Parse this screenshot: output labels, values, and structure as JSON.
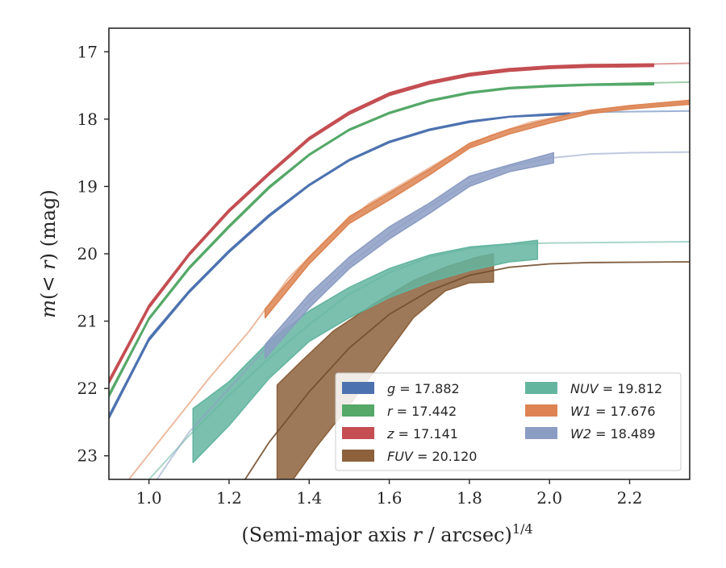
{
  "chart_data": {
    "type": "line",
    "title": "",
    "xlabel": "(Semi-major axis r / arcsec)",
    "xlabel_prefix": "(Semi-major axis ",
    "xlabel_var": "r",
    "xlabel_suffix": " / arcsec)",
    "xlabel_exp": "1/4",
    "ylabel": "m(< r) (mag)",
    "ylabel_prefix": "m",
    "ylabel_mid": "(< ",
    "ylabel_var": "r",
    "ylabel_suffix": ") (mag)",
    "xlim": [
      0.9,
      2.35
    ],
    "ylim": [
      23.35,
      16.65
    ],
    "y_inverted": true,
    "grid": false,
    "legend_position": "lower-right",
    "x_ticks": [
      1.0,
      1.2,
      1.4,
      1.6,
      1.8,
      2.0,
      2.2
    ],
    "x_tick_labels": [
      "1.0",
      "1.2",
      "1.4",
      "1.6",
      "1.8",
      "2.0",
      "2.2"
    ],
    "y_ticks": [
      17,
      18,
      19,
      20,
      21,
      22,
      23
    ],
    "y_tick_labels": [
      "17",
      "18",
      "19",
      "20",
      "21",
      "22",
      "23"
    ],
    "series": [
      {
        "name": "g = 17.882",
        "var": "g",
        "value_text": " = 17.882",
        "color": "#4c72b0",
        "model": [
          [
            0.9,
            22.42
          ],
          [
            1.0,
            21.25
          ],
          [
            1.1,
            20.55
          ],
          [
            1.2,
            19.95
          ],
          [
            1.3,
            19.42
          ],
          [
            1.4,
            18.97
          ],
          [
            1.5,
            18.6
          ],
          [
            1.6,
            18.33
          ],
          [
            1.7,
            18.15
          ],
          [
            1.8,
            18.03
          ],
          [
            1.9,
            17.96
          ],
          [
            2.0,
            17.92
          ],
          [
            2.1,
            17.9
          ],
          [
            2.2,
            17.89
          ],
          [
            2.35,
            17.88
          ]
        ],
        "data_upper": [
          [
            0.9,
            22.4
          ],
          [
            1.0,
            21.25
          ],
          [
            1.1,
            20.55
          ],
          [
            1.2,
            19.95
          ],
          [
            1.3,
            19.42
          ],
          [
            1.4,
            18.97
          ],
          [
            1.5,
            18.6
          ],
          [
            1.6,
            18.33
          ],
          [
            1.7,
            18.15
          ],
          [
            1.8,
            18.03
          ],
          [
            1.9,
            17.96
          ],
          [
            2.05,
            17.91
          ]
        ],
        "data_lower": [
          [
            0.9,
            22.45
          ],
          [
            1.0,
            21.29
          ],
          [
            1.1,
            20.58
          ],
          [
            1.2,
            19.98
          ],
          [
            1.3,
            19.45
          ],
          [
            1.4,
            18.99
          ],
          [
            1.5,
            18.62
          ],
          [
            1.6,
            18.35
          ],
          [
            1.7,
            18.17
          ],
          [
            1.8,
            18.05
          ],
          [
            1.9,
            17.97
          ],
          [
            2.05,
            17.93
          ]
        ]
      },
      {
        "name": "r = 17.442",
        "var": "r",
        "value_text": " = 17.442",
        "color": "#55a868",
        "model": [
          [
            0.9,
            22.1
          ],
          [
            1.0,
            20.95
          ],
          [
            1.1,
            20.2
          ],
          [
            1.2,
            19.58
          ],
          [
            1.3,
            19.0
          ],
          [
            1.4,
            18.52
          ],
          [
            1.5,
            18.15
          ],
          [
            1.6,
            17.9
          ],
          [
            1.7,
            17.72
          ],
          [
            1.8,
            17.6
          ],
          [
            1.9,
            17.53
          ],
          [
            2.0,
            17.5
          ],
          [
            2.1,
            17.48
          ],
          [
            2.2,
            17.47
          ],
          [
            2.35,
            17.45
          ]
        ],
        "data_upper": [
          [
            0.9,
            22.08
          ],
          [
            1.0,
            20.95
          ],
          [
            1.1,
            20.2
          ],
          [
            1.2,
            19.58
          ],
          [
            1.3,
            19.0
          ],
          [
            1.4,
            18.52
          ],
          [
            1.5,
            18.15
          ],
          [
            1.6,
            17.9
          ],
          [
            1.7,
            17.72
          ],
          [
            1.8,
            17.6
          ],
          [
            1.9,
            17.53
          ],
          [
            2.0,
            17.5
          ],
          [
            2.1,
            17.48
          ],
          [
            2.26,
            17.46
          ]
        ],
        "data_lower": [
          [
            0.9,
            22.13
          ],
          [
            1.0,
            20.98
          ],
          [
            1.1,
            20.23
          ],
          [
            1.2,
            19.61
          ],
          [
            1.3,
            19.03
          ],
          [
            1.4,
            18.54
          ],
          [
            1.5,
            18.17
          ],
          [
            1.6,
            17.92
          ],
          [
            1.7,
            17.74
          ],
          [
            1.8,
            17.62
          ],
          [
            1.9,
            17.55
          ],
          [
            2.0,
            17.52
          ],
          [
            2.1,
            17.5
          ],
          [
            2.26,
            17.49
          ]
        ]
      },
      {
        "name": "z = 17.141",
        "var": "z",
        "value_text": " = 17.141",
        "color": "#c44e52",
        "model": [
          [
            0.9,
            21.9
          ],
          [
            1.0,
            20.78
          ],
          [
            1.1,
            20.0
          ],
          [
            1.2,
            19.35
          ],
          [
            1.3,
            18.8
          ],
          [
            1.4,
            18.28
          ],
          [
            1.5,
            17.9
          ],
          [
            1.6,
            17.62
          ],
          [
            1.7,
            17.45
          ],
          [
            1.8,
            17.33
          ],
          [
            1.9,
            17.26
          ],
          [
            2.0,
            17.22
          ],
          [
            2.1,
            17.2
          ],
          [
            2.2,
            17.19
          ],
          [
            2.35,
            17.17
          ]
        ],
        "data_upper": [
          [
            0.9,
            21.87
          ],
          [
            1.0,
            20.76
          ],
          [
            1.1,
            19.99
          ],
          [
            1.2,
            19.34
          ],
          [
            1.3,
            18.79
          ],
          [
            1.4,
            18.27
          ],
          [
            1.5,
            17.89
          ],
          [
            1.6,
            17.61
          ],
          [
            1.7,
            17.44
          ],
          [
            1.8,
            17.32
          ],
          [
            1.9,
            17.25
          ],
          [
            2.0,
            17.21
          ],
          [
            2.1,
            17.19
          ],
          [
            2.26,
            17.18
          ]
        ],
        "data_lower": [
          [
            0.9,
            21.93
          ],
          [
            1.0,
            20.81
          ],
          [
            1.1,
            20.03
          ],
          [
            1.2,
            19.38
          ],
          [
            1.3,
            18.83
          ],
          [
            1.4,
            18.31
          ],
          [
            1.5,
            17.93
          ],
          [
            1.6,
            17.65
          ],
          [
            1.7,
            17.48
          ],
          [
            1.8,
            17.36
          ],
          [
            1.9,
            17.29
          ],
          [
            2.0,
            17.25
          ],
          [
            2.1,
            17.23
          ],
          [
            2.26,
            17.22
          ]
        ]
      },
      {
        "name": "FUV = 20.120",
        "var": "FUV",
        "value_text": " = 20.120",
        "color": "#8c613c",
        "model": [
          [
            1.24,
            23.35
          ],
          [
            1.3,
            22.8
          ],
          [
            1.4,
            22.05
          ],
          [
            1.5,
            21.4
          ],
          [
            1.6,
            20.9
          ],
          [
            1.7,
            20.55
          ],
          [
            1.8,
            20.32
          ],
          [
            1.9,
            20.2
          ],
          [
            2.0,
            20.15
          ],
          [
            2.1,
            20.13
          ],
          [
            2.35,
            20.12
          ]
        ],
        "data_upper": [
          [
            1.32,
            21.95
          ],
          [
            1.38,
            21.6
          ],
          [
            1.46,
            21.15
          ],
          [
            1.56,
            20.75
          ],
          [
            1.66,
            20.4
          ],
          [
            1.74,
            20.2
          ],
          [
            1.82,
            20.05
          ],
          [
            1.86,
            20.0
          ]
        ],
        "data_lower": [
          [
            1.32,
            23.35
          ],
          [
            1.36,
            23.35
          ],
          [
            1.42,
            22.85
          ],
          [
            1.5,
            22.25
          ],
          [
            1.58,
            21.6
          ],
          [
            1.66,
            20.95
          ],
          [
            1.74,
            20.55
          ],
          [
            1.8,
            20.43
          ],
          [
            1.86,
            20.42
          ]
        ]
      },
      {
        "name": "NUV = 19.812",
        "var": "NUV",
        "value_text": " = 19.812",
        "color": "#64b5a0",
        "model": [
          [
            1.0,
            23.35
          ],
          [
            1.1,
            22.7
          ],
          [
            1.2,
            22.1
          ],
          [
            1.3,
            21.55
          ],
          [
            1.4,
            21.05
          ],
          [
            1.5,
            20.6
          ],
          [
            1.6,
            20.28
          ],
          [
            1.7,
            20.05
          ],
          [
            1.8,
            19.92
          ],
          [
            1.9,
            19.86
          ],
          [
            2.0,
            19.84
          ],
          [
            2.35,
            19.82
          ]
        ],
        "data_upper": [
          [
            1.11,
            22.3
          ],
          [
            1.2,
            21.9
          ],
          [
            1.3,
            21.3
          ],
          [
            1.4,
            20.85
          ],
          [
            1.5,
            20.5
          ],
          [
            1.6,
            20.22
          ],
          [
            1.7,
            20.02
          ],
          [
            1.8,
            19.9
          ],
          [
            1.9,
            19.85
          ],
          [
            1.97,
            19.8
          ]
        ],
        "data_lower": [
          [
            1.11,
            23.1
          ],
          [
            1.2,
            22.55
          ],
          [
            1.3,
            21.85
          ],
          [
            1.4,
            21.3
          ],
          [
            1.5,
            20.95
          ],
          [
            1.6,
            20.65
          ],
          [
            1.7,
            20.42
          ],
          [
            1.8,
            20.25
          ],
          [
            1.9,
            20.12
          ],
          [
            1.97,
            20.08
          ]
        ]
      },
      {
        "name": "W1 = 17.676",
        "var": "W1",
        "value_text": " = 17.676",
        "color": "#dd8452",
        "model": [
          [
            0.95,
            23.35
          ],
          [
            1.05,
            22.6
          ],
          [
            1.15,
            21.85
          ],
          [
            1.25,
            21.15
          ],
          [
            1.35,
            20.35
          ],
          [
            1.45,
            19.75
          ],
          [
            1.55,
            19.25
          ],
          [
            1.65,
            18.9
          ],
          [
            1.75,
            18.55
          ],
          [
            1.85,
            18.25
          ],
          [
            1.95,
            18.05
          ],
          [
            2.05,
            17.93
          ],
          [
            2.15,
            17.85
          ],
          [
            2.25,
            17.8
          ],
          [
            2.35,
            17.75
          ]
        ],
        "data_upper": [
          [
            1.29,
            20.82
          ],
          [
            1.4,
            20.05
          ],
          [
            1.5,
            19.45
          ],
          [
            1.6,
            19.1
          ],
          [
            1.7,
            18.75
          ],
          [
            1.8,
            18.36
          ],
          [
            1.9,
            18.15
          ],
          [
            2.0,
            18.0
          ],
          [
            2.1,
            17.87
          ],
          [
            2.2,
            17.8
          ],
          [
            2.35,
            17.72
          ]
        ],
        "data_lower": [
          [
            1.29,
            20.95
          ],
          [
            1.4,
            20.15
          ],
          [
            1.5,
            19.55
          ],
          [
            1.6,
            19.2
          ],
          [
            1.7,
            18.83
          ],
          [
            1.8,
            18.43
          ],
          [
            1.9,
            18.22
          ],
          [
            2.0,
            18.06
          ],
          [
            2.1,
            17.92
          ],
          [
            2.2,
            17.85
          ],
          [
            2.35,
            17.78
          ]
        ]
      },
      {
        "name": "W2 = 18.489",
        "var": "W2",
        "value_text": " = 18.489",
        "color": "#8c9dc4",
        "model": [
          [
            1.02,
            23.35
          ],
          [
            1.1,
            22.65
          ],
          [
            1.2,
            22.0
          ],
          [
            1.3,
            21.35
          ],
          [
            1.4,
            20.7
          ],
          [
            1.5,
            20.15
          ],
          [
            1.6,
            19.7
          ],
          [
            1.7,
            19.3
          ],
          [
            1.8,
            18.95
          ],
          [
            1.9,
            18.7
          ],
          [
            2.0,
            18.58
          ],
          [
            2.1,
            18.52
          ],
          [
            2.2,
            18.5
          ],
          [
            2.35,
            18.49
          ]
        ],
        "data_upper": [
          [
            1.29,
            21.35
          ],
          [
            1.4,
            20.6
          ],
          [
            1.5,
            20.05
          ],
          [
            1.6,
            19.6
          ],
          [
            1.7,
            19.25
          ],
          [
            1.8,
            18.85
          ],
          [
            1.9,
            18.68
          ],
          [
            2.01,
            18.5
          ]
        ],
        "data_lower": [
          [
            1.29,
            21.55
          ],
          [
            1.4,
            20.8
          ],
          [
            1.5,
            20.22
          ],
          [
            1.6,
            19.78
          ],
          [
            1.7,
            19.4
          ],
          [
            1.8,
            19.0
          ],
          [
            1.9,
            18.78
          ],
          [
            2.01,
            18.65
          ]
        ]
      }
    ]
  }
}
